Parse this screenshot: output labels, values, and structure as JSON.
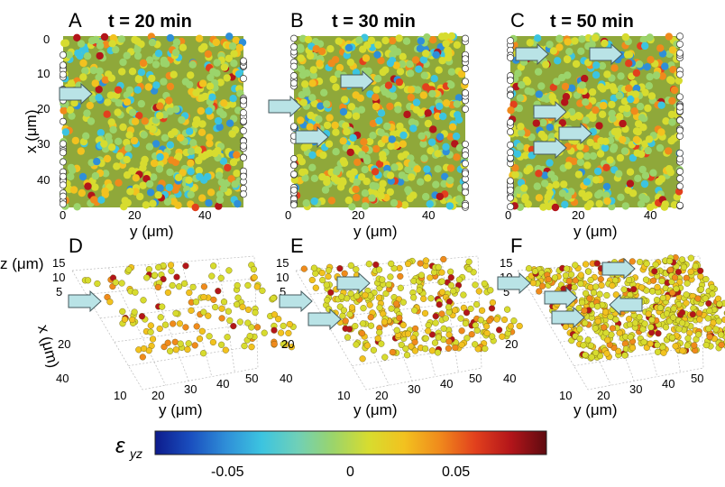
{
  "top_row": [
    {
      "letter": "A",
      "time": "t = 20 min",
      "x_ticks": [
        "0",
        "10",
        "20",
        "30",
        "40"
      ],
      "y_ticks": [
        "0",
        "20",
        "40"
      ]
    },
    {
      "letter": "B",
      "time": "t = 30 min",
      "x_ticks": [],
      "y_ticks": [
        "0",
        "20",
        "40"
      ]
    },
    {
      "letter": "C",
      "time": "t = 50 min",
      "x_ticks": [],
      "y_ticks": [
        "0",
        "20",
        "40"
      ]
    }
  ],
  "top_axis": {
    "xlabel": "x (μm)",
    "ylabel": "y (μm)"
  },
  "bottom_row": [
    {
      "letter": "D",
      "z_ticks": [
        "15",
        "10",
        "5"
      ],
      "x_ticks": [
        "20",
        "40"
      ],
      "y_ticks": [
        "10",
        "20",
        "30",
        "40",
        "50"
      ]
    },
    {
      "letter": "E",
      "z_ticks": [
        "15",
        "10",
        "5"
      ],
      "x_ticks": [
        "20",
        "40"
      ],
      "y_ticks": [
        "10",
        "20",
        "30",
        "40",
        "50"
      ]
    },
    {
      "letter": "F",
      "z_ticks": [
        "15",
        "10",
        "5"
      ],
      "x_ticks": [
        "20",
        "40"
      ],
      "y_ticks": [
        "10",
        "20",
        "30",
        "40",
        "50"
      ]
    }
  ],
  "bottom_axis": {
    "zlabel": "z (μm)",
    "xlabel": "x (μm)",
    "ylabel": "y (μm)"
  },
  "colorbar": {
    "symbol": "ε",
    "subscript": "yz",
    "ticks": [
      "-0.05",
      "0",
      "0.05"
    ],
    "colors": [
      "#0d1b8c",
      "#1a4fbf",
      "#2f8fd8",
      "#3cc4e0",
      "#6fd0b8",
      "#9bd46b",
      "#d7dc2f",
      "#f2c21f",
      "#f08a1c",
      "#e2401d",
      "#b3151a",
      "#5e0b10"
    ]
  },
  "colors": {
    "arrow_fill": "#b9e3e6",
    "arrow_stroke": "#455a5e"
  }
}
